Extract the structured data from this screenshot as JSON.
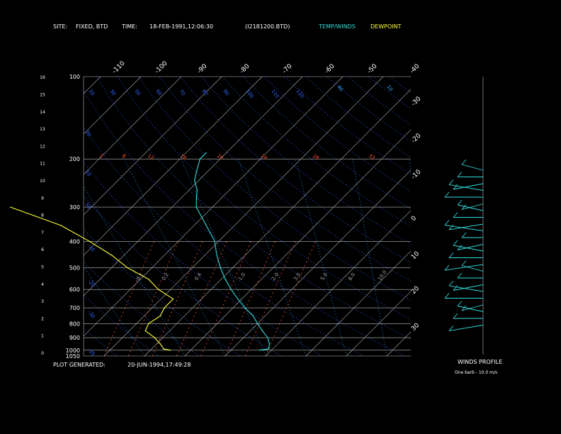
{
  "header": {
    "site_label": "SITE:",
    "site_value": "FIXED, BTD",
    "time_label": "TIME:",
    "time_value": "18-FEB-1991,12:06:30",
    "file": "(I2181200.BTD)",
    "temp_winds": "TEMP/WINDS",
    "dewpoint": "DEWPOINT"
  },
  "footer": {
    "plot_generated_label": "PLOT GENERATED:",
    "plot_generated_value": "20-JUN-1994,17:49:28",
    "winds_profile": "WINDS PROFILE",
    "barb_note": "One barb - 10.0 m/s"
  },
  "colors": {
    "background": "#000000",
    "text": "#ffffff",
    "temperature": "#33dddd",
    "dewpoint": "#ffff33",
    "grid": "#bbbbbb",
    "isotherm_labels": "#ffffff",
    "dry_adiabat": "#3366ff",
    "moist_adiabat": "#33aaff",
    "mixing_ratio": "#ff5533",
    "mixing_ratio_labels": "#aaaaaa"
  },
  "chart_data": {
    "type": "line",
    "pressure_labels": [
      "100",
      "200",
      "300",
      "400",
      "500",
      "600",
      "700",
      "800",
      "900",
      "1000",
      "1050"
    ],
    "pressure_levels": [
      100,
      200,
      300,
      400,
      500,
      600,
      700,
      800,
      900,
      1000,
      1050
    ],
    "height_km_labels": [
      "16",
      "15",
      "14",
      "13",
      "12",
      "11",
      "10",
      "9",
      "8",
      "7",
      "6",
      "5",
      "4",
      "3",
      "2",
      "1",
      "0"
    ],
    "height_km": [
      16,
      15,
      14,
      13,
      12,
      11,
      10,
      9,
      8,
      7,
      6,
      5,
      4,
      3,
      2,
      1,
      0
    ],
    "isotherm_top_labels": [
      "-110",
      "-100",
      "-90",
      "-80",
      "-70",
      "-60",
      "-50",
      "-40"
    ],
    "isotherm_right_labels": [
      "-30",
      "-20",
      "-10",
      "0",
      "10",
      "20",
      "30"
    ],
    "potential_temp_labels": [
      "20",
      "30",
      "50",
      "60",
      "70",
      "80",
      "90",
      "100",
      "110",
      "120"
    ],
    "equiv_potential_temp_labels": [
      "40",
      "10"
    ],
    "mixing_ratio_top_labels": [
      "2",
      "8",
      "12",
      "16",
      "20",
      "24",
      "28",
      "32"
    ],
    "mixing_ratio_mid_labels": [
      "0.1",
      "0.2",
      "0.4",
      "1.0",
      "2.0",
      "3.0",
      "5.0",
      "8.0",
      "10.0"
    ],
    "isotherm_range_c": [
      -110,
      40
    ],
    "pressure_range_hpa": [
      100,
      1050
    ],
    "series": [
      {
        "name": "TEMP/WINDS",
        "pressure": [
          1000,
          990,
          950,
          900,
          850,
          800,
          750,
          700,
          650,
          600,
          550,
          500,
          450,
          400,
          350,
          300,
          280,
          260,
          240,
          220,
          200,
          190
        ],
        "temperature_c": [
          -3,
          -1,
          -2,
          -4,
          -7,
          -10,
          -13,
          -17,
          -21,
          -25,
          -29,
          -33,
          -37,
          -41,
          -47,
          -54,
          -56,
          -58,
          -61,
          -63,
          -65,
          -65
        ]
      },
      {
        "name": "DEWPOINT",
        "pressure": [
          1000,
          990,
          950,
          900,
          850,
          800,
          750,
          700,
          650,
          600,
          550,
          500,
          450,
          400,
          350,
          300
        ],
        "temperature_c": [
          -25,
          -27,
          -29,
          -32,
          -36,
          -37,
          -36,
          -37,
          -37,
          -43,
          -48,
          -56,
          -63,
          -72,
          -83,
          -100
        ]
      }
    ]
  }
}
